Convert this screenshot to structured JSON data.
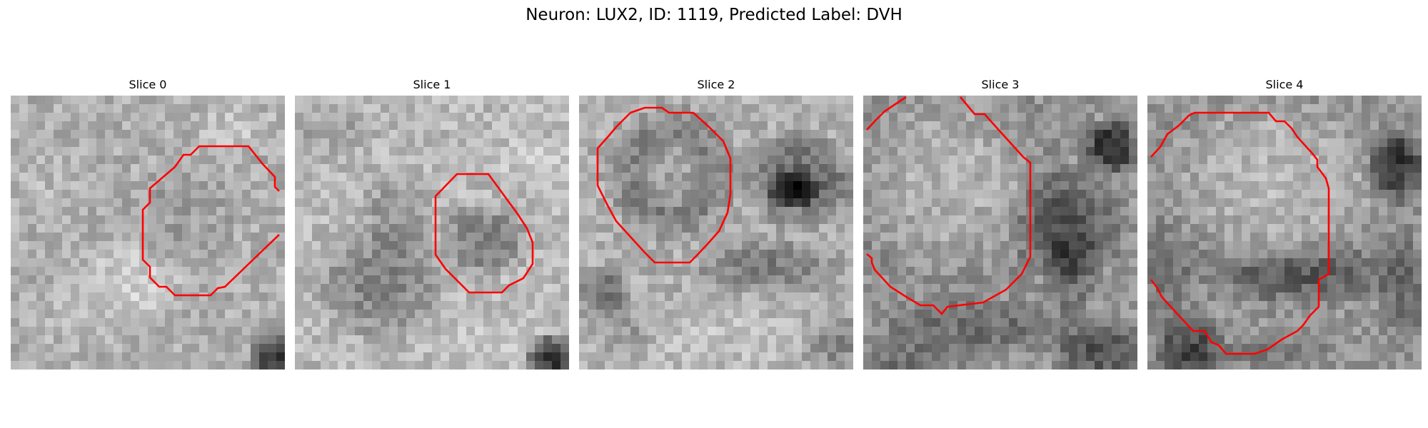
{
  "figure": {
    "title": "Neuron: LUX2, ID: 1119, Predicted Label: DVH"
  },
  "panels": [
    {
      "title": "Slice 0"
    },
    {
      "title": "Slice 1"
    },
    {
      "title": "Slice 2"
    },
    {
      "title": "Slice 3"
    },
    {
      "title": "Slice 4"
    }
  ],
  "colors": {
    "contour": "#ff0000",
    "background": "#ffffff"
  },
  "colormap": "gray"
}
